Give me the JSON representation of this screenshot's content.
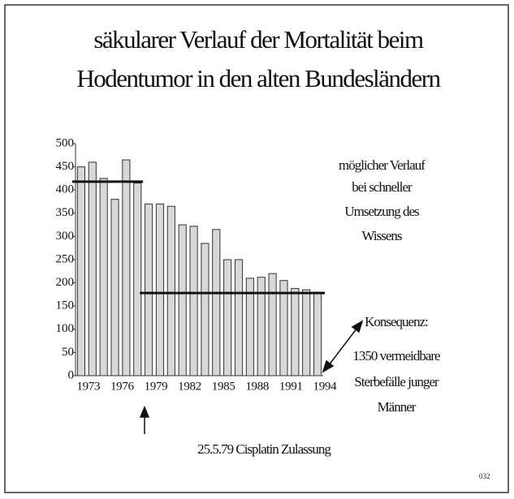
{
  "chart_data": {
    "type": "bar",
    "title": [
      "säkularer Verlauf der Mortalität beim",
      "Hodentumor in den alten Bundesländern"
    ],
    "categories": [
      "1973",
      null,
      null,
      "1976",
      null,
      null,
      "1979",
      null,
      null,
      "1982",
      null,
      null,
      "1985",
      null,
      null,
      "1988",
      null,
      null,
      "1991",
      null,
      null,
      "1994"
    ],
    "values": [
      450,
      460,
      425,
      380,
      465,
      415,
      370,
      370,
      365,
      325,
      322,
      285,
      315,
      250,
      250,
      210,
      212,
      220,
      205,
      188,
      185,
      180
    ],
    "color": "#d8d8d8",
    "ylim": [
      0,
      500
    ],
    "yticks": [
      0,
      50,
      100,
      150,
      200,
      250,
      300,
      350,
      400,
      450,
      500
    ],
    "grid": false,
    "reference_lines": [
      418,
      178
    ],
    "annotations": {
      "possible": [
        "möglicher Verlauf",
        "bei schneller",
        "Umsetzung des",
        "Wissens"
      ],
      "consequence": [
        "Konsequenz:",
        "1350 vermeidbare",
        "Sterbefälle junger",
        "Männer"
      ],
      "approval": "25.5.79 Cisplatin Zulassung"
    },
    "page_number": "032"
  }
}
